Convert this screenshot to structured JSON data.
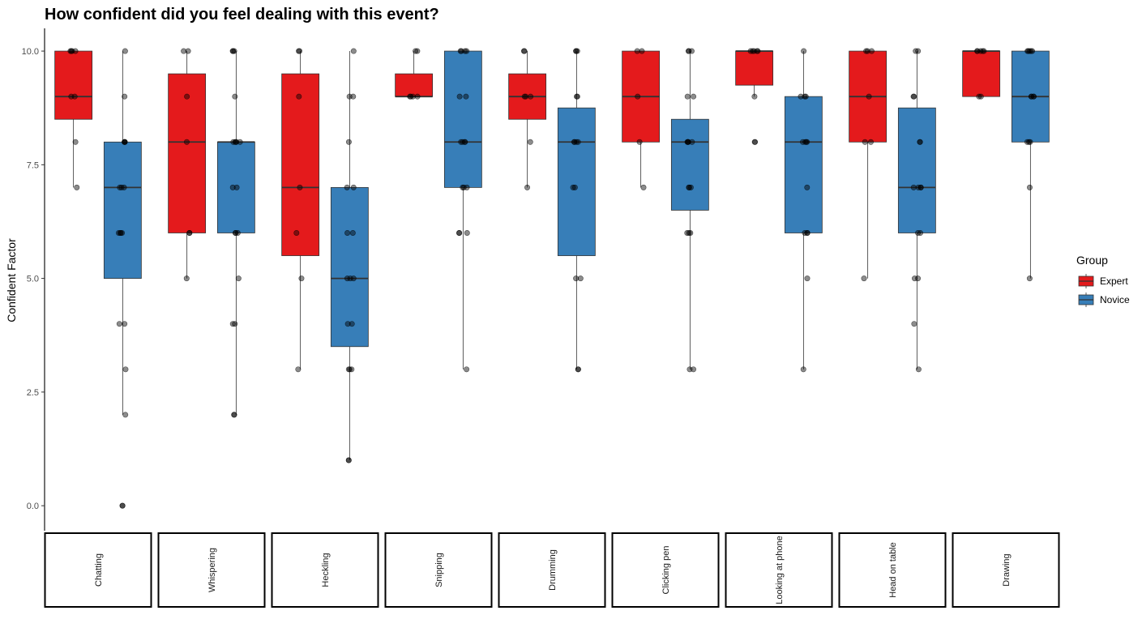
{
  "chart_data": {
    "type": "box",
    "title": "How confident did you feel dealing with this event?",
    "ylabel": "Confident Factor",
    "xlabel": "",
    "ylim": [
      -0.55,
      10.5
    ],
    "yticks": [
      0,
      2.5,
      5,
      7.5,
      10
    ],
    "ytick_labels": [
      "0.0",
      "2.5",
      "5.0",
      "7.5",
      "10.0"
    ],
    "grid": false,
    "legend": {
      "title": "Group",
      "position": "right",
      "items": [
        {
          "label": "Expert",
          "color": "#E41A1C"
        },
        {
          "label": "Novice",
          "color": "#377EB8"
        }
      ]
    },
    "groups": [
      "Expert",
      "Novice"
    ],
    "colors": {
      "Expert": "#E41A1C",
      "Novice": "#377EB8"
    },
    "panels": [
      {
        "label": "Chatting",
        "boxes": {
          "Expert": {
            "min": 7,
            "q1": 8.5,
            "median": 9,
            "q3": 10,
            "max": 10,
            "points": [
              10,
              10,
              10,
              10,
              9,
              9,
              8,
              7
            ]
          },
          "Novice": {
            "min": 2,
            "q1": 5,
            "median": 7,
            "q3": 8,
            "max": 10,
            "points": [
              10,
              9,
              8,
              8,
              8,
              8,
              7,
              7,
              7,
              6,
              6,
              6,
              6,
              4,
              4,
              3,
              2,
              0,
              0
            ]
          }
        }
      },
      {
        "label": "Whispering",
        "boxes": {
          "Expert": {
            "min": 5,
            "q1": 6,
            "median": 8,
            "q3": 9.5,
            "max": 10,
            "points": [
              10,
              10,
              9,
              8,
              6,
              6,
              5
            ]
          },
          "Novice": {
            "min": 2,
            "q1": 6,
            "median": 8,
            "q3": 8,
            "max": 10,
            "points": [
              10,
              10,
              10,
              9,
              8,
              8,
              8,
              8,
              8,
              7,
              7,
              6,
              6,
              6,
              5,
              4,
              4,
              2,
              2
            ]
          }
        }
      },
      {
        "label": "Heckling",
        "boxes": {
          "Expert": {
            "min": 3,
            "q1": 5.5,
            "median": 7,
            "q3": 9.5,
            "max": 10,
            "points": [
              10,
              10,
              9,
              7,
              6,
              5,
              3
            ]
          },
          "Novice": {
            "min": 1,
            "q1": 3.5,
            "median": 5,
            "q3": 7,
            "max": 10,
            "points": [
              10,
              9,
              9,
              8,
              7,
              7,
              6,
              6,
              5,
              5,
              5,
              4,
              4,
              3,
              3,
              3,
              1,
              1
            ]
          }
        }
      },
      {
        "label": "Snipping",
        "boxes": {
          "Expert": {
            "min": 9,
            "q1": 9,
            "median": 9,
            "q3": 9.5,
            "max": 10,
            "points": [
              10,
              10,
              9,
              9,
              9,
              9
            ]
          },
          "Novice": {
            "min": 3,
            "q1": 7,
            "median": 8,
            "q3": 10,
            "max": 10,
            "points": [
              10,
              10,
              10,
              10,
              9,
              9,
              8,
              8,
              8,
              8,
              7,
              7,
              7,
              6,
              6,
              6,
              3
            ]
          }
        }
      },
      {
        "label": "Drumming",
        "boxes": {
          "Expert": {
            "min": 7,
            "q1": 8.5,
            "median": 9,
            "q3": 9.5,
            "max": 10,
            "points": [
              10,
              10,
              9,
              9,
              9,
              8,
              7
            ]
          },
          "Novice": {
            "min": 3,
            "q1": 5.5,
            "median": 8,
            "q3": 8.75,
            "max": 10,
            "points": [
              10,
              10,
              10,
              9,
              9,
              8,
              8,
              8,
              8,
              7,
              7,
              5,
              5,
              3,
              3
            ]
          }
        }
      },
      {
        "label": "Clicking pen",
        "boxes": {
          "Expert": {
            "min": 7,
            "q1": 8,
            "median": 9,
            "q3": 10,
            "max": 10,
            "points": [
              10,
              10,
              9,
              8,
              7
            ]
          },
          "Novice": {
            "min": 3,
            "q1": 6.5,
            "median": 8,
            "q3": 8.5,
            "max": 10,
            "points": [
              10,
              10,
              10,
              9,
              9,
              8,
              8,
              8,
              8,
              8,
              7,
              7,
              7,
              6,
              6,
              6,
              3,
              3
            ]
          }
        }
      },
      {
        "label": "Looking at phone",
        "boxes": {
          "Expert": {
            "min": 9,
            "q1": 9.25,
            "median": 10,
            "q3": 10,
            "max": 10,
            "points": [
              10,
              10,
              10,
              10,
              10,
              9,
              8,
              8
            ]
          },
          "Novice": {
            "min": 3,
            "q1": 6,
            "median": 8,
            "q3": 9,
            "max": 10,
            "points": [
              10,
              9,
              9,
              9,
              8,
              8,
              8,
              8,
              7,
              6,
              6,
              6,
              5,
              3
            ]
          }
        }
      },
      {
        "label": "Head on table",
        "boxes": {
          "Expert": {
            "min": 5,
            "q1": 8,
            "median": 9,
            "q3": 10,
            "max": 10,
            "points": [
              10,
              10,
              10,
              9,
              8,
              8,
              5
            ]
          },
          "Novice": {
            "min": 3,
            "q1": 6,
            "median": 7,
            "q3": 8.75,
            "max": 10,
            "points": [
              10,
              10,
              9,
              9,
              8,
              8,
              7,
              7,
              7,
              7,
              6,
              6,
              5,
              5,
              4,
              3
            ]
          }
        }
      },
      {
        "label": "Drawing",
        "boxes": {
          "Expert": {
            "min": 9,
            "q1": 9,
            "median": 10,
            "q3": 10,
            "max": 10,
            "points": [
              10,
              10,
              10,
              10,
              10,
              9,
              9
            ]
          },
          "Novice": {
            "min": 5,
            "q1": 8,
            "median": 9,
            "q3": 10,
            "max": 10,
            "points": [
              10,
              10,
              10,
              10,
              10,
              9,
              9,
              9,
              9,
              8,
              8,
              8,
              7,
              5
            ]
          }
        }
      }
    ]
  }
}
